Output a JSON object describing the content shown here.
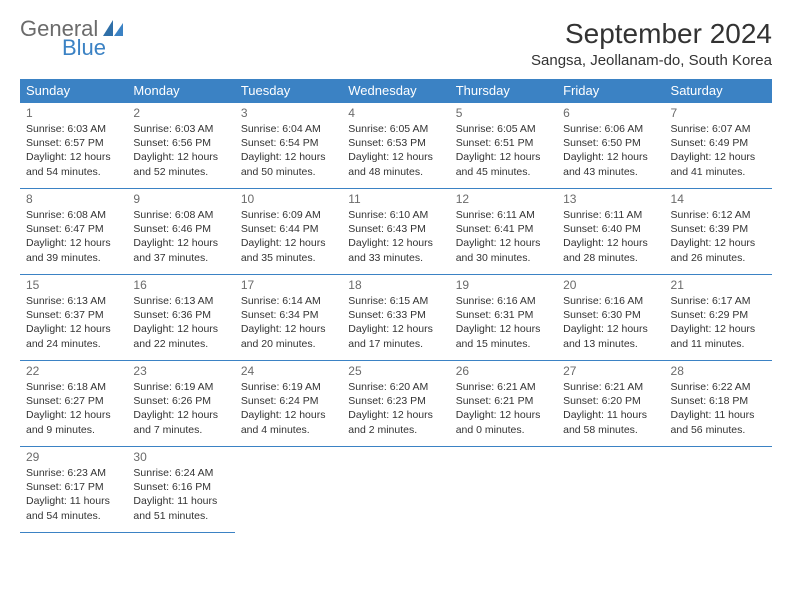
{
  "logo": {
    "text1": "General",
    "text2": "Blue"
  },
  "title": "September 2024",
  "location": "Sangsa, Jeollanam-do, South Korea",
  "colors": {
    "header_bg": "#3b82c4",
    "header_text": "#ffffff",
    "border": "#3b82c4",
    "text": "#333333",
    "muted": "#6b6b6b"
  },
  "day_headers": [
    "Sunday",
    "Monday",
    "Tuesday",
    "Wednesday",
    "Thursday",
    "Friday",
    "Saturday"
  ],
  "weeks": [
    [
      {
        "n": "1",
        "sr": "Sunrise: 6:03 AM",
        "ss": "Sunset: 6:57 PM",
        "dl": "Daylight: 12 hours and 54 minutes."
      },
      {
        "n": "2",
        "sr": "Sunrise: 6:03 AM",
        "ss": "Sunset: 6:56 PM",
        "dl": "Daylight: 12 hours and 52 minutes."
      },
      {
        "n": "3",
        "sr": "Sunrise: 6:04 AM",
        "ss": "Sunset: 6:54 PM",
        "dl": "Daylight: 12 hours and 50 minutes."
      },
      {
        "n": "4",
        "sr": "Sunrise: 6:05 AM",
        "ss": "Sunset: 6:53 PM",
        "dl": "Daylight: 12 hours and 48 minutes."
      },
      {
        "n": "5",
        "sr": "Sunrise: 6:05 AM",
        "ss": "Sunset: 6:51 PM",
        "dl": "Daylight: 12 hours and 45 minutes."
      },
      {
        "n": "6",
        "sr": "Sunrise: 6:06 AM",
        "ss": "Sunset: 6:50 PM",
        "dl": "Daylight: 12 hours and 43 minutes."
      },
      {
        "n": "7",
        "sr": "Sunrise: 6:07 AM",
        "ss": "Sunset: 6:49 PM",
        "dl": "Daylight: 12 hours and 41 minutes."
      }
    ],
    [
      {
        "n": "8",
        "sr": "Sunrise: 6:08 AM",
        "ss": "Sunset: 6:47 PM",
        "dl": "Daylight: 12 hours and 39 minutes."
      },
      {
        "n": "9",
        "sr": "Sunrise: 6:08 AM",
        "ss": "Sunset: 6:46 PM",
        "dl": "Daylight: 12 hours and 37 minutes."
      },
      {
        "n": "10",
        "sr": "Sunrise: 6:09 AM",
        "ss": "Sunset: 6:44 PM",
        "dl": "Daylight: 12 hours and 35 minutes."
      },
      {
        "n": "11",
        "sr": "Sunrise: 6:10 AM",
        "ss": "Sunset: 6:43 PM",
        "dl": "Daylight: 12 hours and 33 minutes."
      },
      {
        "n": "12",
        "sr": "Sunrise: 6:11 AM",
        "ss": "Sunset: 6:41 PM",
        "dl": "Daylight: 12 hours and 30 minutes."
      },
      {
        "n": "13",
        "sr": "Sunrise: 6:11 AM",
        "ss": "Sunset: 6:40 PM",
        "dl": "Daylight: 12 hours and 28 minutes."
      },
      {
        "n": "14",
        "sr": "Sunrise: 6:12 AM",
        "ss": "Sunset: 6:39 PM",
        "dl": "Daylight: 12 hours and 26 minutes."
      }
    ],
    [
      {
        "n": "15",
        "sr": "Sunrise: 6:13 AM",
        "ss": "Sunset: 6:37 PM",
        "dl": "Daylight: 12 hours and 24 minutes."
      },
      {
        "n": "16",
        "sr": "Sunrise: 6:13 AM",
        "ss": "Sunset: 6:36 PM",
        "dl": "Daylight: 12 hours and 22 minutes."
      },
      {
        "n": "17",
        "sr": "Sunrise: 6:14 AM",
        "ss": "Sunset: 6:34 PM",
        "dl": "Daylight: 12 hours and 20 minutes."
      },
      {
        "n": "18",
        "sr": "Sunrise: 6:15 AM",
        "ss": "Sunset: 6:33 PM",
        "dl": "Daylight: 12 hours and 17 minutes."
      },
      {
        "n": "19",
        "sr": "Sunrise: 6:16 AM",
        "ss": "Sunset: 6:31 PM",
        "dl": "Daylight: 12 hours and 15 minutes."
      },
      {
        "n": "20",
        "sr": "Sunrise: 6:16 AM",
        "ss": "Sunset: 6:30 PM",
        "dl": "Daylight: 12 hours and 13 minutes."
      },
      {
        "n": "21",
        "sr": "Sunrise: 6:17 AM",
        "ss": "Sunset: 6:29 PM",
        "dl": "Daylight: 12 hours and 11 minutes."
      }
    ],
    [
      {
        "n": "22",
        "sr": "Sunrise: 6:18 AM",
        "ss": "Sunset: 6:27 PM",
        "dl": "Daylight: 12 hours and 9 minutes."
      },
      {
        "n": "23",
        "sr": "Sunrise: 6:19 AM",
        "ss": "Sunset: 6:26 PM",
        "dl": "Daylight: 12 hours and 7 minutes."
      },
      {
        "n": "24",
        "sr": "Sunrise: 6:19 AM",
        "ss": "Sunset: 6:24 PM",
        "dl": "Daylight: 12 hours and 4 minutes."
      },
      {
        "n": "25",
        "sr": "Sunrise: 6:20 AM",
        "ss": "Sunset: 6:23 PM",
        "dl": "Daylight: 12 hours and 2 minutes."
      },
      {
        "n": "26",
        "sr": "Sunrise: 6:21 AM",
        "ss": "Sunset: 6:21 PM",
        "dl": "Daylight: 12 hours and 0 minutes."
      },
      {
        "n": "27",
        "sr": "Sunrise: 6:21 AM",
        "ss": "Sunset: 6:20 PM",
        "dl": "Daylight: 11 hours and 58 minutes."
      },
      {
        "n": "28",
        "sr": "Sunrise: 6:22 AM",
        "ss": "Sunset: 6:18 PM",
        "dl": "Daylight: 11 hours and 56 minutes."
      }
    ],
    [
      {
        "n": "29",
        "sr": "Sunrise: 6:23 AM",
        "ss": "Sunset: 6:17 PM",
        "dl": "Daylight: 11 hours and 54 minutes."
      },
      {
        "n": "30",
        "sr": "Sunrise: 6:24 AM",
        "ss": "Sunset: 6:16 PM",
        "dl": "Daylight: 11 hours and 51 minutes."
      },
      null,
      null,
      null,
      null,
      null
    ]
  ]
}
